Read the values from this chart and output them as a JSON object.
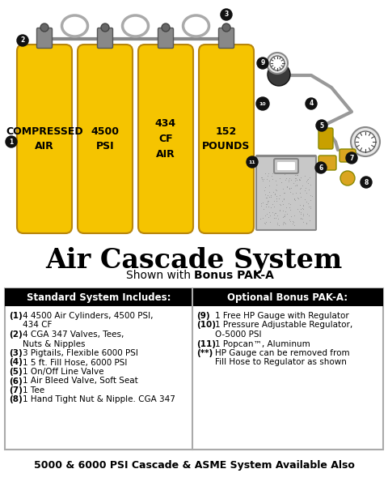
{
  "title": "Air Cascade System",
  "subtitle_plain": "Shown with ",
  "subtitle_bold": "Bonus PAK-A",
  "bg_color": "#ffffff",
  "cylinder_color": "#F5C400",
  "cylinder_edge": "#B8860B",
  "cylinder_text_color": "#000000",
  "cylinder_labels": [
    "C\nO\nM\nP\nR\nE\nS\nS\nE\nD\n \nA\nI\nR",
    "4\n5\n0\n0\n \nP\nS\nI",
    "4\n3\n4\n \nC\nF\n \nA\nI\nR",
    "1\n5\n2\n \nP\nO\nU\nN\nD\nS"
  ],
  "left_header": "Standard System Includes:",
  "right_header": "Optional Bonus PAK-A:",
  "left_items": [
    [
      "(1)",
      "4 4500 Air Cylinders, 4500 PSI,",
      "     434 CF"
    ],
    [
      "(2)",
      "4 CGA 347 Valves, Tees,",
      "     Nuts & Nipples"
    ],
    [
      "(3)",
      "3 Pigtails, Flexible 6000 PSI",
      ""
    ],
    [
      "(4)",
      "1 5 ft. Fill Hose, 6000 PSI",
      ""
    ],
    [
      "(5)",
      "1 On/Off Line Valve",
      ""
    ],
    [
      "(6)",
      "1 Air Bleed Valve, Soft Seat",
      ""
    ],
    [
      "(7)",
      "1 Tee",
      ""
    ],
    [
      "(8)",
      "1 Hand Tight Nut & Nipple. CGA 347",
      ""
    ]
  ],
  "right_items": [
    [
      "(9)",
      "1 Free HP Gauge with Regulator",
      ""
    ],
    [
      "(10)",
      "1 Pressure Adjustable Regulator,",
      "       O-5000 PSI"
    ],
    [
      "(11)",
      "1 Popcan™, Aluminum",
      ""
    ],
    [
      "(**)",
      "HP Gauge can be removed from",
      "       Fill Hose to Regulator as shown"
    ]
  ],
  "footer": "5000 & 6000 PSI Cascade & ASME System Available Also"
}
